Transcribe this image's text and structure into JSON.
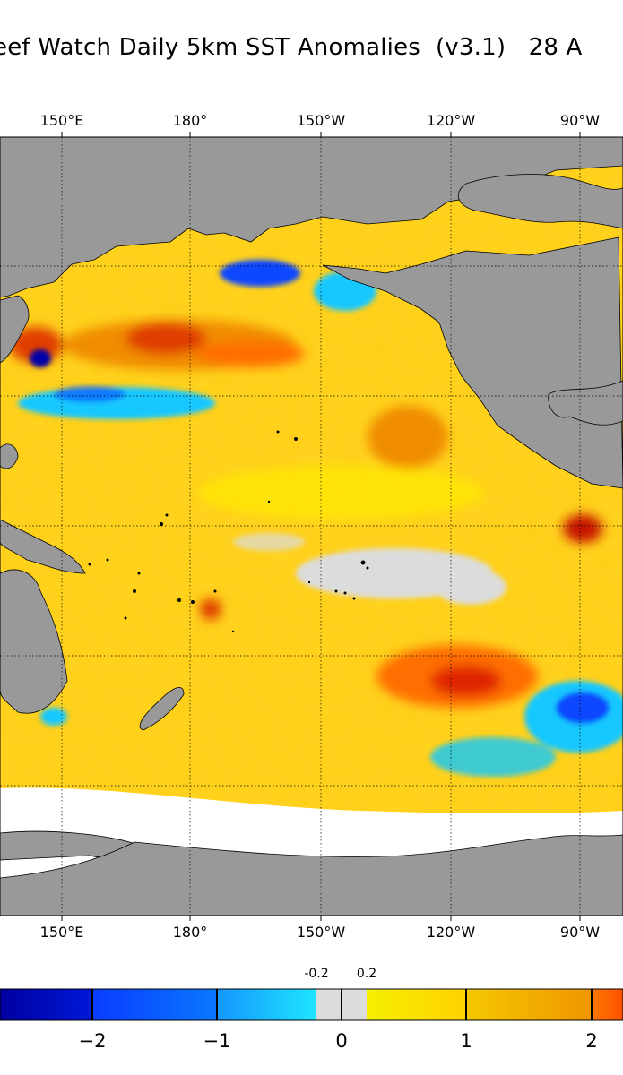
{
  "title": "eef Watch Daily 5km SST Anomalies  (v3.1)   28 A",
  "map": {
    "projection": "equirectangular",
    "lon_labels_top": [
      "150°E",
      "180°",
      "150°W",
      "120°W",
      "90°W"
    ],
    "lon_labels_bottom": [
      "150°E",
      "180°",
      "150°W",
      "120°W",
      "90°W"
    ],
    "land_color": "#999999",
    "ice_color": "#ffffff"
  },
  "colorbar": {
    "ticks": [
      "−2",
      "−1",
      "0",
      "1",
      "2"
    ],
    "small_ticks": [
      "-0.2",
      "0.2"
    ],
    "colors": {
      "neg_dark": "#0000a8",
      "neg_mid": "#0a46ff",
      "neg_light": "#14c8ff",
      "neutral": "#dcdcdc",
      "pos_light": "#ffeb00",
      "pos_mid": "#f0b400",
      "pos_dark": "#ff6e00"
    }
  }
}
